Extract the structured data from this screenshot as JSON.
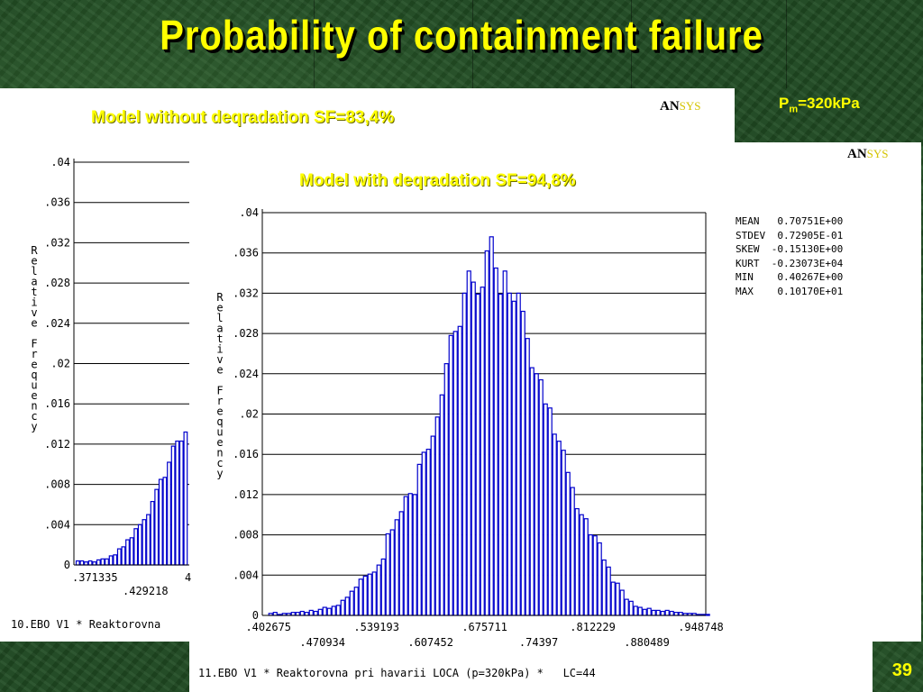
{
  "slide": {
    "title": "Probability of containment failure",
    "pressure": {
      "prefix": "P",
      "sub": "m",
      "suffix": "=320kPa"
    },
    "page_number": "39",
    "colors": {
      "title": "#ffff00",
      "bar": "#0000cc",
      "background": "#1f4a22"
    }
  },
  "logo": {
    "an": "AN",
    "sys": "SYS"
  },
  "chart_data": [
    {
      "type": "bar",
      "title": "Model without deqradation SF=83,4%",
      "ylabel": "Relative Frequency",
      "ylabel_chars": [
        "R",
        "e",
        "l",
        "a",
        "t",
        "i",
        "v",
        "e",
        "",
        "F",
        "r",
        "e",
        "q",
        "u",
        "e",
        "n",
        "c",
        "y"
      ],
      "ylim": [
        0,
        0.04
      ],
      "yticks": [
        ".04",
        ".036",
        ".032",
        ".028",
        ".024",
        ".02",
        ".016",
        ".012",
        ".008",
        ".004",
        "0"
      ],
      "xticks": [
        ".371335",
        ".429218",
        "4"
      ],
      "values": [
        0.0004,
        0.0004,
        0.0003,
        0.0004,
        0.0003,
        0.0005,
        0.0006,
        0.0006,
        0.0009,
        0.001,
        0.0016,
        0.0018,
        0.0025,
        0.0027,
        0.0036,
        0.004,
        0.0045,
        0.005,
        0.0063,
        0.0075,
        0.0085,
        0.0087,
        0.0102,
        0.0118,
        0.0123,
        0.0123,
        0.0132
      ],
      "footer": "10.EBO V1 * Reaktorovna"
    },
    {
      "type": "bar",
      "title": "Model with deqradation SF=94,8%",
      "ylabel": "Relative Frequency",
      "ylabel_chars": [
        "R",
        "e",
        "l",
        "a",
        "t",
        "i",
        "v",
        "e",
        "",
        "F",
        "r",
        "e",
        "q",
        "u",
        "e",
        "n",
        "c",
        "y"
      ],
      "ylim": [
        0,
        0.04
      ],
      "yticks": [
        ".04",
        ".036",
        ".032",
        ".028",
        ".024",
        ".02",
        ".016",
        ".012",
        ".008",
        ".004",
        "0"
      ],
      "xticks_upper": [
        ".402675",
        ".539193",
        ".675711",
        ".812229",
        ".948748"
      ],
      "xticks_lower": [
        ".470934",
        ".607452",
        ".74397",
        ".880489"
      ],
      "xlim": [
        0.395,
        0.955
      ],
      "x_start": 0.4027,
      "bin_width": 0.00569,
      "values": [
        0.0002,
        0.0003,
        0.0001,
        0.0002,
        0.0002,
        0.0003,
        0.0003,
        0.0004,
        0.0003,
        0.0005,
        0.0004,
        0.0006,
        0.0008,
        0.0007,
        0.0009,
        0.001,
        0.0015,
        0.0018,
        0.0024,
        0.0028,
        0.0036,
        0.0039,
        0.0041,
        0.0043,
        0.005,
        0.0056,
        0.0081,
        0.0085,
        0.0095,
        0.0103,
        0.0118,
        0.0121,
        0.012,
        0.015,
        0.0162,
        0.0165,
        0.0178,
        0.0197,
        0.0219,
        0.025,
        0.0278,
        0.0282,
        0.0287,
        0.032,
        0.0342,
        0.0331,
        0.0319,
        0.0326,
        0.0362,
        0.0376,
        0.0345,
        0.0319,
        0.0342,
        0.032,
        0.0312,
        0.032,
        0.0302,
        0.0275,
        0.0246,
        0.024,
        0.0234,
        0.021,
        0.0206,
        0.018,
        0.0173,
        0.0164,
        0.0142,
        0.0127,
        0.0106,
        0.01,
        0.0096,
        0.008,
        0.0079,
        0.0072,
        0.0055,
        0.0048,
        0.0033,
        0.0032,
        0.0025,
        0.0016,
        0.0014,
        0.0009,
        0.0008,
        0.0006,
        0.0007,
        0.0005,
        0.0005,
        0.0004,
        0.0005,
        0.0004,
        0.0003,
        0.0003,
        0.0002,
        0.0002,
        0.0002,
        0.0001,
        0.0001,
        0.0001
      ],
      "stats": [
        {
          "key": "MEAN",
          "value": " 0.70751E+00"
        },
        {
          "key": "STDEV",
          "value": " 0.72905E-01"
        },
        {
          "key": "SKEW",
          "value": "-0.15130E+00"
        },
        {
          "key": "KURT",
          "value": "-0.23073E+04"
        },
        {
          "key": "MIN",
          "value": " 0.40267E+00"
        },
        {
          "key": "MAX",
          "value": " 0.10170E+01"
        }
      ],
      "footer": "11.EBO V1 * Reaktorovna pri havarii LOCA (p=320kPa) *   LC=44"
    }
  ]
}
